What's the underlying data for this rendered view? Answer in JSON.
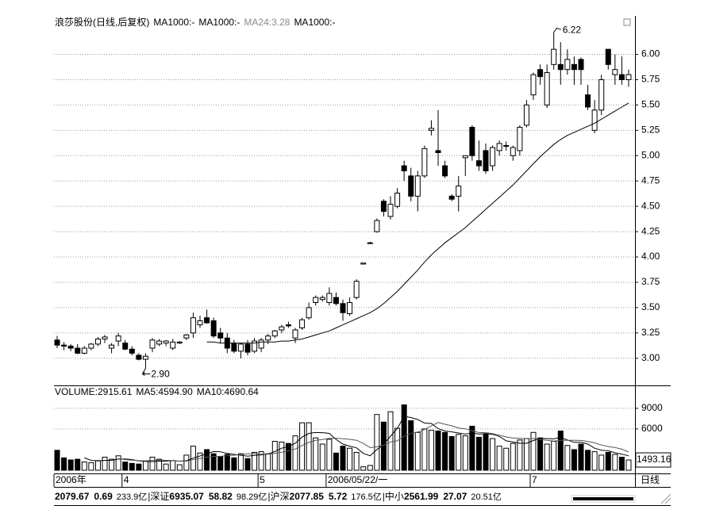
{
  "chart_data": {
    "type": "candlestick",
    "title": "浪莎股份(日线,后复权)",
    "ma_legend": [
      {
        "label": "MA1000:-",
        "color": "#000000"
      },
      {
        "label": "MA1000:-",
        "color": "#000000"
      },
      {
        "label": "MA24:3.28",
        "color": "#8c8c8c"
      },
      {
        "label": "MA1000:-",
        "color": "#000000"
      }
    ],
    "volume_legend": [
      "VOLUME:2915.61",
      "MA5:4594.90",
      "MA10:4690.64"
    ],
    "max_label": "6.22",
    "min_label": "2.90",
    "period": "日线",
    "categories": [
      "2006年",
      null,
      null,
      null,
      null,
      null,
      null,
      null,
      null,
      null,
      "4",
      null,
      null,
      null,
      null,
      null,
      null,
      null,
      null,
      null,
      null,
      null,
      null,
      null,
      null,
      null,
      null,
      null,
      null,
      null,
      "5",
      null,
      null,
      null,
      null,
      null,
      null,
      null,
      null,
      null,
      "2006/05/22/一",
      null,
      null,
      null,
      null,
      null,
      null,
      null,
      null,
      null,
      null,
      null,
      null,
      null,
      null,
      null,
      null,
      null,
      null,
      null,
      null,
      null,
      null,
      null,
      null,
      null,
      null,
      null,
      null,
      null,
      "7",
      null,
      null,
      null,
      null,
      null,
      null,
      null,
      null,
      null,
      null,
      null,
      null,
      null,
      null
    ],
    "ohlc": [
      [
        3.18,
        3.22,
        3.1,
        3.13
      ],
      [
        3.13,
        3.16,
        3.08,
        3.12
      ],
      [
        3.12,
        3.14,
        3.07,
        3.1
      ],
      [
        3.1,
        3.14,
        3.04,
        3.05
      ],
      [
        3.05,
        3.12,
        3.04,
        3.1
      ],
      [
        3.1,
        3.15,
        3.08,
        3.14
      ],
      [
        3.14,
        3.21,
        3.12,
        3.19
      ],
      [
        3.19,
        3.23,
        3.15,
        3.21
      ],
      [
        3.1,
        3.15,
        3.05,
        3.13
      ],
      [
        3.17,
        3.25,
        3.12,
        3.22
      ],
      [
        3.15,
        3.18,
        3.08,
        3.09
      ],
      [
        3.09,
        3.12,
        3.03,
        3.05
      ],
      [
        3.03,
        3.05,
        2.98,
        2.99
      ],
      [
        2.99,
        3.05,
        2.9,
        3.02
      ],
      [
        3.1,
        3.2,
        3.06,
        3.18
      ],
      [
        3.14,
        3.19,
        3.12,
        3.17
      ],
      [
        3.15,
        3.18,
        3.12,
        3.17
      ],
      [
        3.1,
        3.19,
        3.08,
        3.16
      ],
      [
        3.15,
        3.17,
        3.14,
        3.16
      ],
      [
        3.2,
        3.24,
        3.18,
        3.23
      ],
      [
        3.25,
        3.45,
        3.2,
        3.4
      ],
      [
        3.33,
        3.42,
        3.3,
        3.37
      ],
      [
        3.4,
        3.48,
        3.34,
        3.35
      ],
      [
        3.37,
        3.4,
        3.2,
        3.22
      ],
      [
        3.25,
        3.3,
        3.15,
        3.2
      ],
      [
        3.2,
        3.25,
        3.05,
        3.1
      ],
      [
        3.15,
        3.18,
        3.05,
        3.07
      ],
      [
        3.07,
        3.15,
        3.0,
        3.14
      ],
      [
        3.14,
        3.18,
        3.03,
        3.06
      ],
      [
        3.07,
        3.2,
        3.05,
        3.17
      ],
      [
        3.1,
        3.2,
        3.06,
        3.18
      ],
      [
        3.18,
        3.24,
        3.14,
        3.22
      ],
      [
        3.22,
        3.28,
        3.2,
        3.27
      ],
      [
        3.28,
        3.33,
        3.25,
        3.31
      ],
      [
        3.33,
        3.36,
        3.3,
        3.32
      ],
      [
        3.2,
        3.3,
        3.15,
        3.28
      ],
      [
        3.3,
        3.4,
        3.28,
        3.38
      ],
      [
        3.4,
        3.55,
        3.38,
        3.5
      ],
      [
        3.55,
        3.62,
        3.52,
        3.6
      ],
      [
        3.58,
        3.62,
        3.56,
        3.6
      ],
      [
        3.55,
        3.7,
        3.52,
        3.64
      ],
      [
        3.6,
        3.65,
        3.52,
        3.54
      ],
      [
        3.54,
        3.58,
        3.37,
        3.45
      ],
      [
        3.44,
        3.6,
        3.42,
        3.55
      ],
      [
        3.6,
        3.78,
        3.58,
        3.76
      ],
      [
        3.93,
        3.94,
        3.93,
        3.94
      ],
      [
        4.14,
        4.15,
        4.13,
        4.14
      ],
      [
        4.25,
        4.38,
        4.24,
        4.36
      ],
      [
        4.55,
        4.57,
        4.4,
        4.45
      ],
      [
        4.4,
        4.6,
        4.37,
        4.52
      ],
      [
        4.5,
        4.68,
        4.48,
        4.63
      ],
      [
        4.9,
        4.95,
        4.75,
        4.85
      ],
      [
        4.8,
        4.88,
        4.55,
        4.6
      ],
      [
        4.6,
        4.85,
        4.45,
        4.8
      ],
      [
        4.8,
        5.1,
        4.78,
        5.07
      ],
      [
        5.25,
        5.35,
        5.2,
        5.27
      ],
      [
        5.05,
        5.45,
        4.9,
        5.03
      ],
      [
        4.9,
        4.95,
        4.78,
        4.8
      ],
      [
        4.6,
        4.62,
        4.55,
        4.57
      ],
      [
        4.6,
        4.8,
        4.45,
        4.7
      ],
      [
        4.98,
        5.0,
        4.8,
        5.0
      ],
      [
        5.28,
        5.3,
        4.95,
        5.0
      ],
      [
        4.95,
        5.15,
        4.85,
        4.9
      ],
      [
        5.05,
        5.12,
        4.82,
        4.85
      ],
      [
        4.9,
        5.1,
        4.85,
        5.08
      ],
      [
        5.05,
        5.15,
        5.0,
        5.12
      ],
      [
        5.1,
        5.14,
        5.05,
        5.1
      ],
      [
        5.0,
        5.1,
        4.95,
        5.08
      ],
      [
        5.05,
        5.3,
        5.0,
        5.28
      ],
      [
        5.3,
        5.55,
        5.28,
        5.5
      ],
      [
        5.6,
        5.82,
        5.55,
        5.8
      ],
      [
        5.85,
        5.9,
        5.7,
        5.78
      ],
      [
        5.5,
        5.9,
        5.47,
        5.82
      ],
      [
        5.9,
        6.22,
        5.85,
        6.05
      ],
      [
        5.9,
        6.12,
        5.7,
        5.85
      ],
      [
        5.85,
        6.05,
        5.8,
        5.95
      ],
      [
        5.9,
        5.98,
        5.7,
        5.85
      ],
      [
        5.95,
        5.97,
        5.7,
        5.85
      ],
      [
        5.6,
        5.7,
        5.45,
        5.48
      ],
      [
        5.25,
        5.55,
        5.22,
        5.45
      ],
      [
        5.45,
        5.8,
        5.4,
        5.75
      ],
      [
        6.05,
        6.05,
        5.85,
        5.9
      ],
      [
        5.8,
        6.0,
        5.7,
        5.85
      ],
      [
        5.8,
        5.98,
        5.7,
        5.75
      ],
      [
        5.75,
        5.85,
        5.68,
        5.8
      ]
    ],
    "ma24": [
      null,
      null,
      null,
      null,
      null,
      null,
      null,
      null,
      null,
      null,
      null,
      null,
      null,
      null,
      null,
      null,
      null,
      null,
      null,
      null,
      null,
      null,
      3.16,
      3.16,
      3.15,
      3.15,
      3.15,
      3.15,
      3.15,
      3.15,
      3.16,
      3.16,
      3.16,
      3.17,
      3.17,
      3.18,
      3.19,
      3.21,
      3.23,
      3.25,
      3.27,
      3.3,
      3.33,
      3.36,
      3.39,
      3.42,
      3.45,
      3.49,
      3.54,
      3.6,
      3.66,
      3.73,
      3.8,
      3.87,
      3.95,
      4.02,
      4.08,
      4.14,
      4.19,
      4.24,
      4.29,
      4.35,
      4.41,
      4.47,
      4.53,
      4.59,
      4.65,
      4.71,
      4.78,
      4.85,
      4.92,
      4.99,
      5.05,
      5.11,
      5.16,
      5.2,
      5.23,
      5.26,
      5.29,
      5.32,
      5.36,
      5.4,
      5.44,
      5.48,
      5.52
    ],
    "volume": [
      2900,
      1800,
      1500,
      1600,
      1200,
      1100,
      1400,
      1900,
      1600,
      2100,
      1200,
      1000,
      900,
      1300,
      1900,
      1600,
      900,
      1400,
      800,
      2200,
      3500,
      2500,
      3000,
      2400,
      2000,
      2300,
      1800,
      2400,
      1700,
      2600,
      2700,
      2400,
      4200,
      4100,
      3900,
      5000,
      6900,
      6900,
      4700,
      3800,
      4500,
      2500,
      3500,
      3200,
      2600,
      500,
      700,
      8100,
      7000,
      8500,
      6100,
      9500,
      7200,
      5500,
      6000,
      5800,
      5700,
      5500,
      4900,
      5200,
      5000,
      6400,
      4800,
      5300,
      4600,
      3500,
      3200,
      3900,
      4400,
      4600,
      5500,
      4700,
      3800,
      4200,
      5700,
      3600,
      3000,
      3800,
      2900,
      2700,
      2200,
      2600,
      2300,
      1900,
      1493.16
    ],
    "volume_ma5": [
      null,
      null,
      null,
      null,
      1800,
      1440,
      1360,
      1440,
      1440,
      1620,
      1640,
      1560,
      1360,
      1300,
      1260,
      1340,
      1320,
      1420,
      1320,
      1380,
      1760,
      2080,
      2400,
      2720,
      2680,
      2440,
      2300,
      2180,
      2040,
      2160,
      2240,
      2360,
      2720,
      3200,
      3460,
      3920,
      4820,
      5360,
      5480,
      5460,
      5360,
      4480,
      3800,
      3500,
      3260,
      2460,
      2100,
      3020,
      3780,
      4960,
      6080,
      7840,
      7660,
      7360,
      6860,
      6800,
      6040,
      5700,
      5580,
      5420,
      5260,
      5400,
      5260,
      5340,
      5220,
      4920,
      4280,
      4100,
      3920,
      3920,
      4320,
      4620,
      4600,
      4560,
      4780,
      4400,
      4060,
      4060,
      3800,
      3200,
      2920,
      2840,
      2540,
      2340,
      2099
    ],
    "volume_ma10": [
      null,
      null,
      null,
      null,
      null,
      null,
      null,
      null,
      null,
      1710,
      1540,
      1460,
      1400,
      1370,
      1440,
      1490,
      1440,
      1390,
      1310,
      1320,
      1550,
      1700,
      1910,
      2020,
      2030,
      2100,
      2190,
      2290,
      2380,
      2420,
      2340,
      2330,
      2450,
      2620,
      2810,
      3080,
      3590,
      4040,
      4340,
      4460,
      4640,
      4650,
      4580,
      4490,
      4360,
      3910,
      3290,
      3410,
      3640,
      4110,
      4270,
      4970,
      5340,
      5570,
      5910,
      6440,
      6940,
      6680,
      6470,
      6140,
      6030,
      5720,
      5480,
      5460,
      5320,
      5090,
      4840,
      4680,
      4630,
      4570,
      4620,
      4450,
      4350,
      4240,
      4350,
      4360,
      4340,
      4330,
      4180,
      3990,
      3660,
      3450,
      3300,
      3070,
      2650
    ],
    "up_color": "#ffffff",
    "down_color": "#000000",
    "ylim": [
      2.74,
      6.38
    ],
    "yticks": [
      {
        "value": 3,
        "label": "3.00"
      },
      3.25,
      {
        "value": 3.5,
        "label": "3.50"
      },
      3.75,
      {
        "value": 4,
        "label": "4.00"
      },
      4.25,
      {
        "value": 4.5,
        "label": "4.50"
      },
      4.75,
      {
        "value": 5,
        "label": "5.00"
      },
      5.25,
      {
        "value": 5.5,
        "label": "5.50"
      },
      5.75,
      {
        "value": 6,
        "label": "6.00"
      }
    ],
    "volume_ylim": [
      0,
      12100
    ],
    "volume_yticks": [
      6000,
      9000
    ],
    "grid": true
  },
  "status_bar": [
    {
      "value": "2079.67",
      "change": "0.69",
      "amount": "233.9亿"
    },
    {
      "name": "深证",
      "value": "6935.07",
      "change": "58.82",
      "amount": "98.29亿"
    },
    {
      "name": "沪深",
      "value": "2077.85",
      "change": "5.72",
      "amount": "176.5亿"
    },
    {
      "name": "中小",
      "value": "2561.99",
      "change": "27.07",
      "amount": "20.51亿"
    }
  ]
}
